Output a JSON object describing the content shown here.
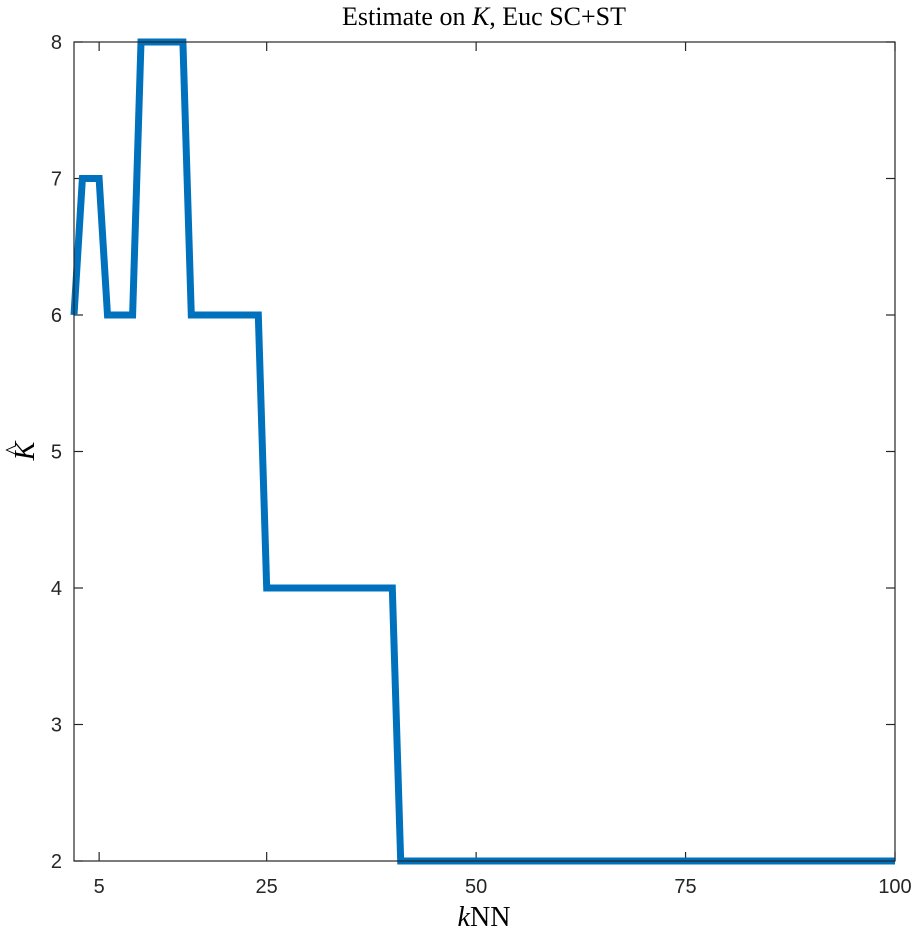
{
  "chart_data": {
    "type": "line",
    "title": {
      "prefix": "Estimate on ",
      "var": "K",
      "suffix": ", Euc SC+ST"
    },
    "xlabel": {
      "var": "k",
      "rest": "NN"
    },
    "ylabel": {
      "hat": "^",
      "var": "K"
    },
    "xlim": [
      2,
      100
    ],
    "ylim": [
      2,
      8
    ],
    "xticks": [
      5,
      25,
      50,
      75,
      100
    ],
    "yticks": [
      2,
      3,
      4,
      5,
      6,
      7,
      8
    ],
    "grid": false,
    "series": [
      {
        "color": "#0072BD",
        "x": [
          2,
          3,
          4,
          5,
          6,
          7,
          8,
          9,
          10,
          11,
          12,
          13,
          14,
          15,
          16,
          17,
          18,
          19,
          20,
          21,
          22,
          23,
          24,
          25,
          26,
          27,
          28,
          29,
          30,
          31,
          32,
          33,
          34,
          35,
          36,
          37,
          38,
          39,
          40,
          41,
          100
        ],
        "y": [
          6,
          7,
          7,
          7,
          6,
          6,
          6,
          6,
          8,
          8,
          8,
          8,
          8,
          8,
          6,
          6,
          6,
          6,
          6,
          6,
          6,
          6,
          6,
          4,
          4,
          4,
          4,
          4,
          4,
          4,
          4,
          4,
          4,
          4,
          4,
          4,
          4,
          4,
          4,
          2,
          2
        ]
      }
    ]
  }
}
